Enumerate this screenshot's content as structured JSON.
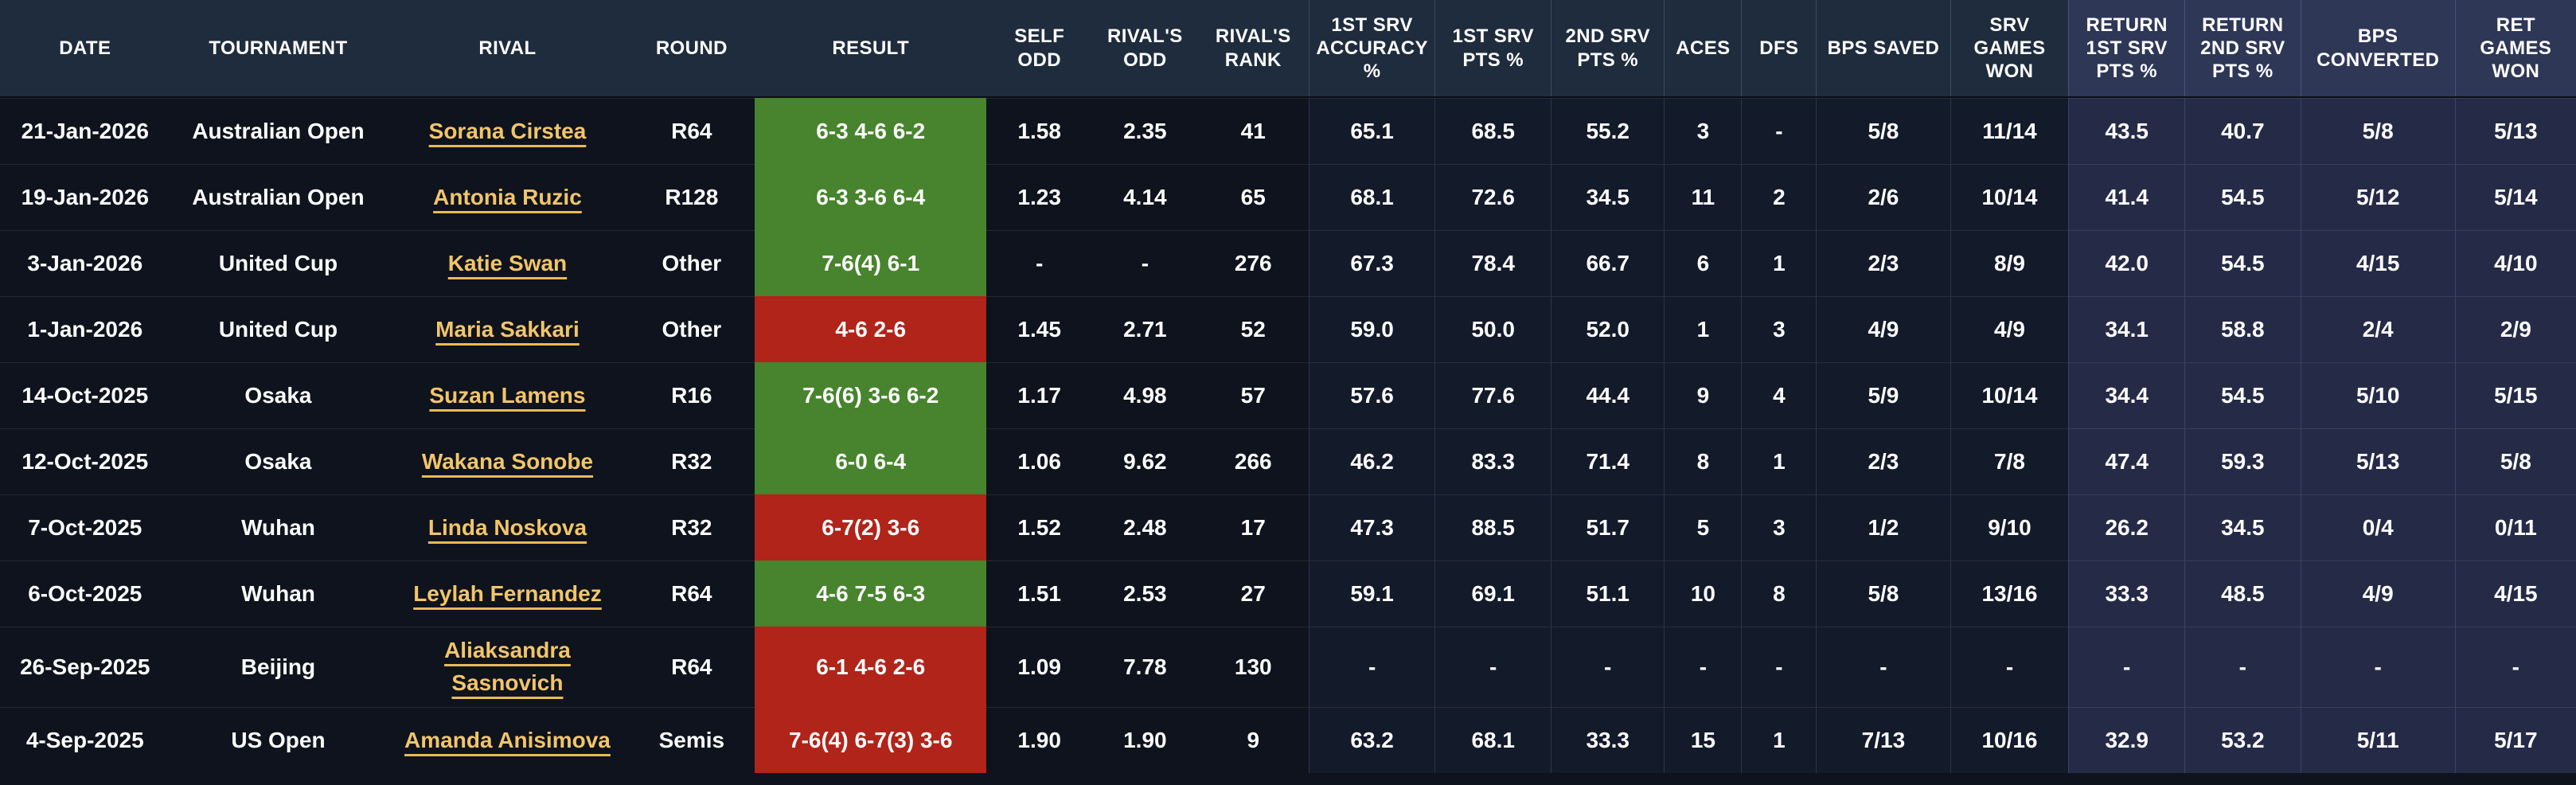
{
  "table": {
    "columns": [
      {
        "id": "date",
        "label": "DATE"
      },
      {
        "id": "tournament",
        "label": "TOURNAMENT"
      },
      {
        "id": "rival",
        "label": "RIVAL"
      },
      {
        "id": "round",
        "label": "ROUND"
      },
      {
        "id": "result",
        "label": "RESULT"
      },
      {
        "id": "self_odd",
        "label": "SELF ODD"
      },
      {
        "id": "rival_odd",
        "label": "RIVAL'S ODD"
      },
      {
        "id": "rival_rank",
        "label": "RIVAL'S RANK"
      },
      {
        "id": "srv1_acc",
        "label": "1ST SRV ACCURACY %"
      },
      {
        "id": "srv1_pts",
        "label": "1ST SRV PTS %"
      },
      {
        "id": "srv2_pts",
        "label": "2ND SRV PTS %"
      },
      {
        "id": "aces",
        "label": "ACES"
      },
      {
        "id": "dfs",
        "label": "DFS"
      },
      {
        "id": "bps_saved",
        "label": "BPS SAVED"
      },
      {
        "id": "srv_games_won",
        "label": "SRV GAMES WON"
      },
      {
        "id": "ret_1st",
        "label": "RETURN 1ST SRV PTS %"
      },
      {
        "id": "ret_2nd",
        "label": "RETURN 2ND SRV PTS %"
      },
      {
        "id": "bps_converted",
        "label": "BPS CONVERTED"
      },
      {
        "id": "ret_games_won",
        "label": "RET GAMES WON"
      }
    ],
    "rows": [
      {
        "date": "21-Jan-2026",
        "tournament": "Australian Open",
        "rival": "Sorana Cirstea",
        "round": "R64",
        "result": "6-3 4-6 6-2",
        "outcome": "win",
        "self_odd": "1.58",
        "rival_odd": "2.35",
        "rival_rank": "41",
        "srv1_acc": "65.1",
        "srv1_pts": "68.5",
        "srv2_pts": "55.2",
        "aces": "3",
        "dfs": "-",
        "bps_saved": "5/8",
        "srv_games_won": "11/14",
        "ret_1st": "43.5",
        "ret_2nd": "40.7",
        "bps_converted": "5/8",
        "ret_games_won": "5/13"
      },
      {
        "date": "19-Jan-2026",
        "tournament": "Australian Open",
        "rival": "Antonia Ruzic",
        "round": "R128",
        "result": "6-3 3-6 6-4",
        "outcome": "win",
        "self_odd": "1.23",
        "rival_odd": "4.14",
        "rival_rank": "65",
        "srv1_acc": "68.1",
        "srv1_pts": "72.6",
        "srv2_pts": "34.5",
        "aces": "11",
        "dfs": "2",
        "bps_saved": "2/6",
        "srv_games_won": "10/14",
        "ret_1st": "41.4",
        "ret_2nd": "54.5",
        "bps_converted": "5/12",
        "ret_games_won": "5/14"
      },
      {
        "date": "3-Jan-2026",
        "tournament": "United Cup",
        "rival": "Katie Swan",
        "round": "Other",
        "result": "7-6(4) 6-1",
        "outcome": "win",
        "self_odd": "-",
        "rival_odd": "-",
        "rival_rank": "276",
        "srv1_acc": "67.3",
        "srv1_pts": "78.4",
        "srv2_pts": "66.7",
        "aces": "6",
        "dfs": "1",
        "bps_saved": "2/3",
        "srv_games_won": "8/9",
        "ret_1st": "42.0",
        "ret_2nd": "54.5",
        "bps_converted": "4/15",
        "ret_games_won": "4/10"
      },
      {
        "date": "1-Jan-2026",
        "tournament": "United Cup",
        "rival": "Maria Sakkari",
        "round": "Other",
        "result": "4-6 2-6",
        "outcome": "loss",
        "self_odd": "1.45",
        "rival_odd": "2.71",
        "rival_rank": "52",
        "srv1_acc": "59.0",
        "srv1_pts": "50.0",
        "srv2_pts": "52.0",
        "aces": "1",
        "dfs": "3",
        "bps_saved": "4/9",
        "srv_games_won": "4/9",
        "ret_1st": "34.1",
        "ret_2nd": "58.8",
        "bps_converted": "2/4",
        "ret_games_won": "2/9"
      },
      {
        "date": "14-Oct-2025",
        "tournament": "Osaka",
        "rival": "Suzan Lamens",
        "round": "R16",
        "result": "7-6(6) 3-6 6-2",
        "outcome": "win",
        "self_odd": "1.17",
        "rival_odd": "4.98",
        "rival_rank": "57",
        "srv1_acc": "57.6",
        "srv1_pts": "77.6",
        "srv2_pts": "44.4",
        "aces": "9",
        "dfs": "4",
        "bps_saved": "5/9",
        "srv_games_won": "10/14",
        "ret_1st": "34.4",
        "ret_2nd": "54.5",
        "bps_converted": "5/10",
        "ret_games_won": "5/15"
      },
      {
        "date": "12-Oct-2025",
        "tournament": "Osaka",
        "rival": "Wakana Sonobe",
        "round": "R32",
        "result": "6-0 6-4",
        "outcome": "win",
        "self_odd": "1.06",
        "rival_odd": "9.62",
        "rival_rank": "266",
        "srv1_acc": "46.2",
        "srv1_pts": "83.3",
        "srv2_pts": "71.4",
        "aces": "8",
        "dfs": "1",
        "bps_saved": "2/3",
        "srv_games_won": "7/8",
        "ret_1st": "47.4",
        "ret_2nd": "59.3",
        "bps_converted": "5/13",
        "ret_games_won": "5/8"
      },
      {
        "date": "7-Oct-2025",
        "tournament": "Wuhan",
        "rival": "Linda Noskova",
        "round": "R32",
        "result": "6-7(2) 3-6",
        "outcome": "loss",
        "self_odd": "1.52",
        "rival_odd": "2.48",
        "rival_rank": "17",
        "srv1_acc": "47.3",
        "srv1_pts": "88.5",
        "srv2_pts": "51.7",
        "aces": "5",
        "dfs": "3",
        "bps_saved": "1/2",
        "srv_games_won": "9/10",
        "ret_1st": "26.2",
        "ret_2nd": "34.5",
        "bps_converted": "0/4",
        "ret_games_won": "0/11"
      },
      {
        "date": "6-Oct-2025",
        "tournament": "Wuhan",
        "rival": "Leylah Fernandez",
        "round": "R64",
        "result": "4-6 7-5 6-3",
        "outcome": "win",
        "self_odd": "1.51",
        "rival_odd": "2.53",
        "rival_rank": "27",
        "srv1_acc": "59.1",
        "srv1_pts": "69.1",
        "srv2_pts": "51.1",
        "aces": "10",
        "dfs": "8",
        "bps_saved": "5/8",
        "srv_games_won": "13/16",
        "ret_1st": "33.3",
        "ret_2nd": "48.5",
        "bps_converted": "4/9",
        "ret_games_won": "4/15"
      },
      {
        "date": "26-Sep-2025",
        "tournament": "Beijing",
        "rival": "Aliaksandra Sasnovich",
        "round": "R64",
        "result": "6-1 4-6 2-6",
        "outcome": "loss",
        "self_odd": "1.09",
        "rival_odd": "7.78",
        "rival_rank": "130",
        "srv1_acc": "-",
        "srv1_pts": "-",
        "srv2_pts": "-",
        "aces": "-",
        "dfs": "-",
        "bps_saved": "-",
        "srv_games_won": "-",
        "ret_1st": "-",
        "ret_2nd": "-",
        "bps_converted": "-",
        "ret_games_won": "-"
      },
      {
        "date": "4-Sep-2025",
        "tournament": "US Open",
        "rival": "Amanda Anisimova",
        "round": "Semis",
        "result": "7-6(4) 6-7(3) 3-6",
        "outcome": "loss",
        "self_odd": "1.90",
        "rival_odd": "1.90",
        "rival_rank": "9",
        "srv1_acc": "63.2",
        "srv1_pts": "68.1",
        "srv2_pts": "33.3",
        "aces": "15",
        "dfs": "1",
        "bps_saved": "7/13",
        "srv_games_won": "10/16",
        "ret_1st": "32.9",
        "ret_2nd": "53.2",
        "bps_converted": "5/11",
        "ret_games_won": "5/17"
      }
    ]
  },
  "colors": {
    "win_bg": "#47842D",
    "loss_bg": "#B0241A",
    "link": "#F2C569",
    "header_bg": "#1F2C3D",
    "header_return_bg": "#2F3757",
    "body_bg": "#0E131D",
    "stats_bg": "#131A2A",
    "return_bg": "#252B47"
  }
}
